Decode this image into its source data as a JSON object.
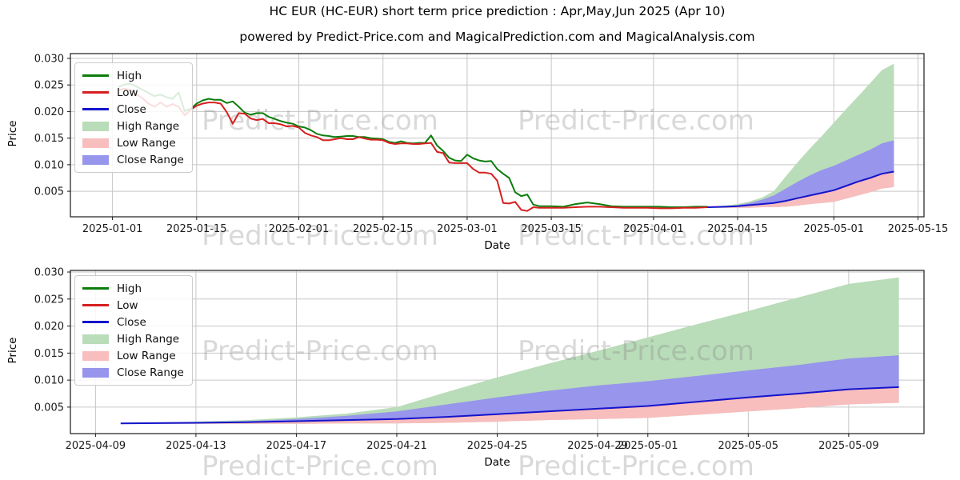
{
  "figure": {
    "title": "HC EUR (HC-EUR) short term price prediction : Apr,May,Jun 2025 (Apr 10)",
    "subtitle": "powered by Predict-Price.com and MagicalPrediction.com and MagicalAnalysis.com",
    "watermark_text": "Predict-Price.com"
  },
  "axes": {
    "x_label": "Date",
    "y_label": "Price"
  },
  "colors": {
    "high": "#0b7d0b",
    "low": "#d62020",
    "close": "#1414cc",
    "high_range": "#b9dcb9",
    "low_range": "#f8bdbd",
    "close_range": "#9795ec",
    "grid": "#c6c6c6",
    "frame": "#1a1a1a",
    "tick_text": "#1a1a1a",
    "watermark": "#808080"
  },
  "legend": {
    "items": [
      {
        "label": "High",
        "type": "line",
        "color_key": "high"
      },
      {
        "label": "Low",
        "type": "line",
        "color_key": "low"
      },
      {
        "label": "Close",
        "type": "line",
        "color_key": "close"
      },
      {
        "label": "High Range",
        "type": "patch",
        "color_key": "high_range"
      },
      {
        "label": "Low Range",
        "type": "patch",
        "color_key": "low_range"
      },
      {
        "label": "Close Range",
        "type": "patch",
        "color_key": "close_range"
      }
    ]
  },
  "chart_data": {
    "type": "line",
    "historical": {
      "columns": [
        "date",
        "high",
        "low"
      ],
      "rows": [
        [
          "2025-01-02",
          0.0246,
          0.024
        ],
        [
          "2025-01-03",
          0.0251,
          0.0243
        ],
        [
          "2025-01-04",
          0.0252,
          0.024
        ],
        [
          "2025-01-05",
          0.0247,
          0.0232
        ],
        [
          "2025-01-06",
          0.0241,
          0.0225
        ],
        [
          "2025-01-07",
          0.0235,
          0.0215
        ],
        [
          "2025-01-08",
          0.0229,
          0.0209
        ],
        [
          "2025-01-09",
          0.0232,
          0.0217
        ],
        [
          "2025-01-10",
          0.0227,
          0.0209
        ],
        [
          "2025-01-11",
          0.0224,
          0.0214
        ],
        [
          "2025-01-12",
          0.0236,
          0.0209
        ],
        [
          "2025-01-13",
          0.0201,
          0.0193
        ],
        [
          "2025-01-14",
          0.0205,
          0.0203
        ],
        [
          "2025-01-15",
          0.0215,
          0.0211
        ],
        [
          "2025-01-16",
          0.0221,
          0.0215
        ],
        [
          "2025-01-17",
          0.0224,
          0.0217
        ],
        [
          "2025-01-18",
          0.0222,
          0.0217
        ],
        [
          "2025-01-19",
          0.0222,
          0.0215
        ],
        [
          "2025-01-20",
          0.0216,
          0.0199
        ],
        [
          "2025-01-21",
          0.0219,
          0.0177
        ],
        [
          "2025-01-22",
          0.0209,
          0.0197
        ],
        [
          "2025-01-23",
          0.0198,
          0.0196
        ],
        [
          "2025-01-24",
          0.0194,
          0.0187
        ],
        [
          "2025-01-25",
          0.0197,
          0.0184
        ],
        [
          "2025-01-26",
          0.0197,
          0.0186
        ],
        [
          "2025-01-27",
          0.019,
          0.0178
        ],
        [
          "2025-01-28",
          0.0186,
          0.0178
        ],
        [
          "2025-01-29",
          0.0182,
          0.0176
        ],
        [
          "2025-01-30",
          0.0179,
          0.0172
        ],
        [
          "2025-01-31",
          0.0177,
          0.0173
        ],
        [
          "2025-02-01",
          0.0172,
          0.017
        ],
        [
          "2025-02-02",
          0.017,
          0.016
        ],
        [
          "2025-02-03",
          0.0165,
          0.0155
        ],
        [
          "2025-02-04",
          0.0158,
          0.0152
        ],
        [
          "2025-02-05",
          0.0155,
          0.0146
        ],
        [
          "2025-02-06",
          0.0154,
          0.0146
        ],
        [
          "2025-02-07",
          0.0152,
          0.0148
        ],
        [
          "2025-02-08",
          0.0153,
          0.015
        ],
        [
          "2025-02-09",
          0.0154,
          0.0148
        ],
        [
          "2025-02-10",
          0.0154,
          0.0148
        ],
        [
          "2025-02-11",
          0.0152,
          0.0152
        ],
        [
          "2025-02-12",
          0.0152,
          0.0149
        ],
        [
          "2025-02-13",
          0.015,
          0.0147
        ],
        [
          "2025-02-14",
          0.0149,
          0.0147
        ],
        [
          "2025-02-15",
          0.0148,
          0.0146
        ],
        [
          "2025-02-16",
          0.0143,
          0.0141
        ],
        [
          "2025-02-17",
          0.0141,
          0.0139
        ],
        [
          "2025-02-18",
          0.0144,
          0.014
        ],
        [
          "2025-02-19",
          0.0141,
          0.014
        ],
        [
          "2025-02-20",
          0.014,
          0.0139
        ],
        [
          "2025-02-21",
          0.0141,
          0.0139
        ],
        [
          "2025-02-22",
          0.0141,
          0.014
        ],
        [
          "2025-02-23",
          0.0155,
          0.0141
        ],
        [
          "2025-02-24",
          0.0136,
          0.0124
        ],
        [
          "2025-02-25",
          0.0126,
          0.0122
        ],
        [
          "2025-02-26",
          0.0113,
          0.0104
        ],
        [
          "2025-02-27",
          0.0108,
          0.0103
        ],
        [
          "2025-02-28",
          0.0107,
          0.0103
        ],
        [
          "2025-03-01",
          0.0119,
          0.0103
        ],
        [
          "2025-03-02",
          0.0112,
          0.0092
        ],
        [
          "2025-03-03",
          0.0108,
          0.0085
        ],
        [
          "2025-03-04",
          0.0106,
          0.0085
        ],
        [
          "2025-03-05",
          0.0107,
          0.0083
        ],
        [
          "2025-03-06",
          0.0092,
          0.007
        ],
        [
          "2025-03-07",
          0.0083,
          0.0028
        ],
        [
          "2025-03-08",
          0.0075,
          0.0027
        ],
        [
          "2025-03-09",
          0.0048,
          0.003
        ],
        [
          "2025-03-10",
          0.0041,
          0.0015
        ],
        [
          "2025-03-11",
          0.0044,
          0.0013
        ],
        [
          "2025-03-12",
          0.0025,
          0.002
        ],
        [
          "2025-03-13",
          0.0022,
          0.0019
        ],
        [
          "2025-03-15",
          0.0022,
          0.0019
        ],
        [
          "2025-03-17",
          0.0021,
          0.0019
        ],
        [
          "2025-03-19",
          0.0026,
          0.002
        ],
        [
          "2025-03-21",
          0.0029,
          0.0021
        ],
        [
          "2025-03-23",
          0.0026,
          0.0021
        ],
        [
          "2025-03-25",
          0.0022,
          0.002
        ],
        [
          "2025-03-27",
          0.0021,
          0.0019
        ],
        [
          "2025-03-29",
          0.0021,
          0.0019
        ],
        [
          "2025-03-31",
          0.0021,
          0.0019
        ],
        [
          "2025-04-02",
          0.0021,
          0.0018
        ],
        [
          "2025-04-04",
          0.002,
          0.0018
        ],
        [
          "2025-04-06",
          0.002,
          0.0019
        ],
        [
          "2025-04-08",
          0.0021,
          0.0019
        ],
        [
          "2025-04-10",
          0.0021,
          0.002
        ]
      ]
    },
    "prediction": {
      "columns": [
        "date",
        "close",
        "high_max",
        "close_max",
        "low_min"
      ],
      "rows": [
        [
          "2025-04-10",
          0.002,
          0.0021,
          0.0021,
          0.0019
        ],
        [
          "2025-04-13",
          0.0021,
          0.0023,
          0.0022,
          0.0019
        ],
        [
          "2025-04-15",
          0.0022,
          0.0026,
          0.0024,
          0.0019
        ],
        [
          "2025-04-17",
          0.0024,
          0.0031,
          0.0028,
          0.0019
        ],
        [
          "2025-04-19",
          0.0026,
          0.0038,
          0.0034,
          0.002
        ],
        [
          "2025-04-21",
          0.0028,
          0.005,
          0.0042,
          0.002
        ],
        [
          "2025-04-23",
          0.0032,
          0.0078,
          0.0055,
          0.0021
        ],
        [
          "2025-04-25",
          0.0037,
          0.0105,
          0.0068,
          0.0023
        ],
        [
          "2025-04-27",
          0.0042,
          0.013,
          0.008,
          0.0026
        ],
        [
          "2025-04-29",
          0.0047,
          0.0154,
          0.009,
          0.0028
        ],
        [
          "2025-05-01",
          0.0052,
          0.0179,
          0.0098,
          0.003
        ],
        [
          "2025-05-03",
          0.006,
          0.0204,
          0.0108,
          0.0036
        ],
        [
          "2025-05-05",
          0.0068,
          0.0228,
          0.0118,
          0.0042
        ],
        [
          "2025-05-07",
          0.0075,
          0.0253,
          0.0128,
          0.0048
        ],
        [
          "2025-05-09",
          0.0083,
          0.0278,
          0.014,
          0.0055
        ],
        [
          "2025-05-11",
          0.0087,
          0.029,
          0.0146,
          0.0058
        ]
      ]
    },
    "charts": [
      {
        "name": "full-history-with-prediction",
        "show_historical": true,
        "x_range": [
          "2024-12-25",
          "2025-05-16"
        ],
        "y_range": [
          0.0002,
          0.0309
        ],
        "x_ticks": [
          "2025-01-01",
          "2025-01-15",
          "2025-02-01",
          "2025-02-15",
          "2025-03-01",
          "2025-03-15",
          "2025-04-01",
          "2025-04-15",
          "2025-05-01",
          "2025-05-15"
        ],
        "y_ticks": [
          0.005,
          0.01,
          0.015,
          0.02,
          0.025,
          0.03
        ],
        "grid": true,
        "xlabel": "Date",
        "ylabel": "Price"
      },
      {
        "name": "prediction-zoom",
        "show_historical": false,
        "x_range": [
          "2025-04-08",
          "2025-05-12"
        ],
        "y_range": [
          0.0001,
          0.0303
        ],
        "x_ticks": [
          "2025-04-09",
          "2025-04-13",
          "2025-04-17",
          "2025-04-21",
          "2025-04-25",
          "2025-04-29",
          "2025-05-01",
          "2025-05-05",
          "2025-05-09"
        ],
        "y_ticks": [
          0.005,
          0.01,
          0.015,
          0.02,
          0.025,
          0.03
        ],
        "grid": true,
        "xlabel": "Date",
        "ylabel": "Price"
      }
    ],
    "legend_position": "upper left"
  }
}
